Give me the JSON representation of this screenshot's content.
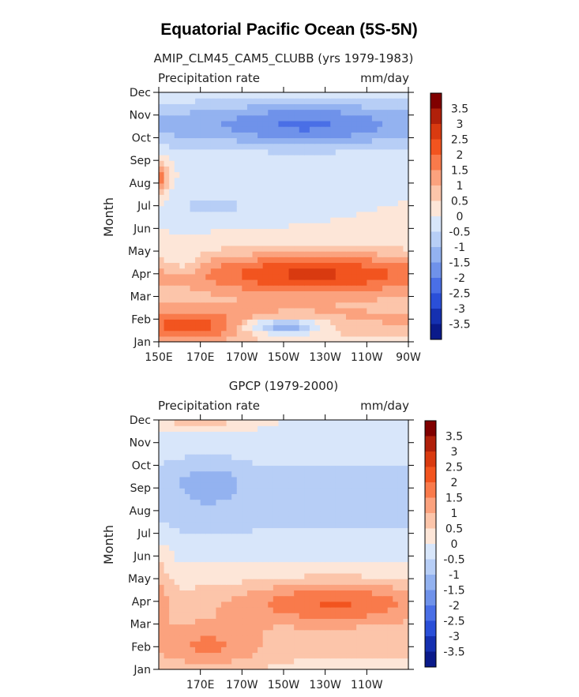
{
  "title": "Equatorial Pacific Ocean (5S-5N)",
  "chart_data": [
    {
      "type": "heatmap",
      "subtitle": "AMIP_CLM45_CAM5_CLUBB (yrs 1979-1983)",
      "left_label": "Precipitation rate",
      "right_label": "mm/day",
      "ylabel": "Month",
      "xlim": [
        150,
        270
      ],
      "y_categories": [
        "Jan",
        "Feb",
        "Mar",
        "Apr",
        "May",
        "Jun",
        "Jul",
        "Aug",
        "Sep",
        "Oct",
        "Nov",
        "Dec"
      ],
      "x_ticks": [
        {
          "value": 150,
          "label": "150E"
        },
        {
          "value": 170,
          "label": "170E"
        },
        {
          "value": 190,
          "label": "170W"
        },
        {
          "value": 210,
          "label": "150W"
        },
        {
          "value": 230,
          "label": "130W"
        },
        {
          "value": 250,
          "label": "110W"
        },
        {
          "value": 270,
          "label": "90W"
        }
      ],
      "colorbar": {
        "levels": [
          "3.5",
          "3",
          "2.5",
          "2",
          "1.5",
          "1",
          "0.5",
          "0",
          "-0.5",
          "-1",
          "-1.5",
          "-2",
          "-2.5",
          "-3",
          "-3.5"
        ],
        "colors": [
          "#800000",
          "#b0200a",
          "#d93a10",
          "#f2541f",
          "#f97a4b",
          "#fba27e",
          "#fcc5aa",
          "#fde6d8",
          "#d8e6fa",
          "#b7cef6",
          "#93b2f0",
          "#6f92ea",
          "#4a6fe6",
          "#2a4fd8",
          "#1530b0",
          "#0a1a8a"
        ]
      }
    },
    {
      "type": "heatmap",
      "subtitle": "GPCP (1979-2000)",
      "left_label": "Precipitation rate",
      "right_label": "mm/day",
      "ylabel": "Month",
      "xlim": [
        150,
        270
      ],
      "y_categories": [
        "Jan",
        "Feb",
        "Mar",
        "Apr",
        "May",
        "Jun",
        "Jul",
        "Aug",
        "Sep",
        "Oct",
        "Nov",
        "Dec"
      ],
      "x_ticks": [
        {
          "value": 170,
          "label": "170E"
        },
        {
          "value": 190,
          "label": "170W"
        },
        {
          "value": 210,
          "label": "150W"
        },
        {
          "value": 230,
          "label": "130W"
        },
        {
          "value": 250,
          "label": "110W"
        }
      ],
      "colorbar": {
        "levels": [
          "3.5",
          "3",
          "2.5",
          "2",
          "1.5",
          "1",
          "0.5",
          "0",
          "-0.5",
          "-1",
          "-1.5",
          "-2",
          "-2.5",
          "-3",
          "-3.5"
        ],
        "colors": [
          "#800000",
          "#b0200a",
          "#d93a10",
          "#f2541f",
          "#f97a4b",
          "#fba27e",
          "#fcc5aa",
          "#fde6d8",
          "#d8e6fa",
          "#b7cef6",
          "#93b2f0",
          "#6f92ea",
          "#4a6fe6",
          "#2a4fd8",
          "#1530b0",
          "#0a1a8a"
        ]
      }
    }
  ]
}
